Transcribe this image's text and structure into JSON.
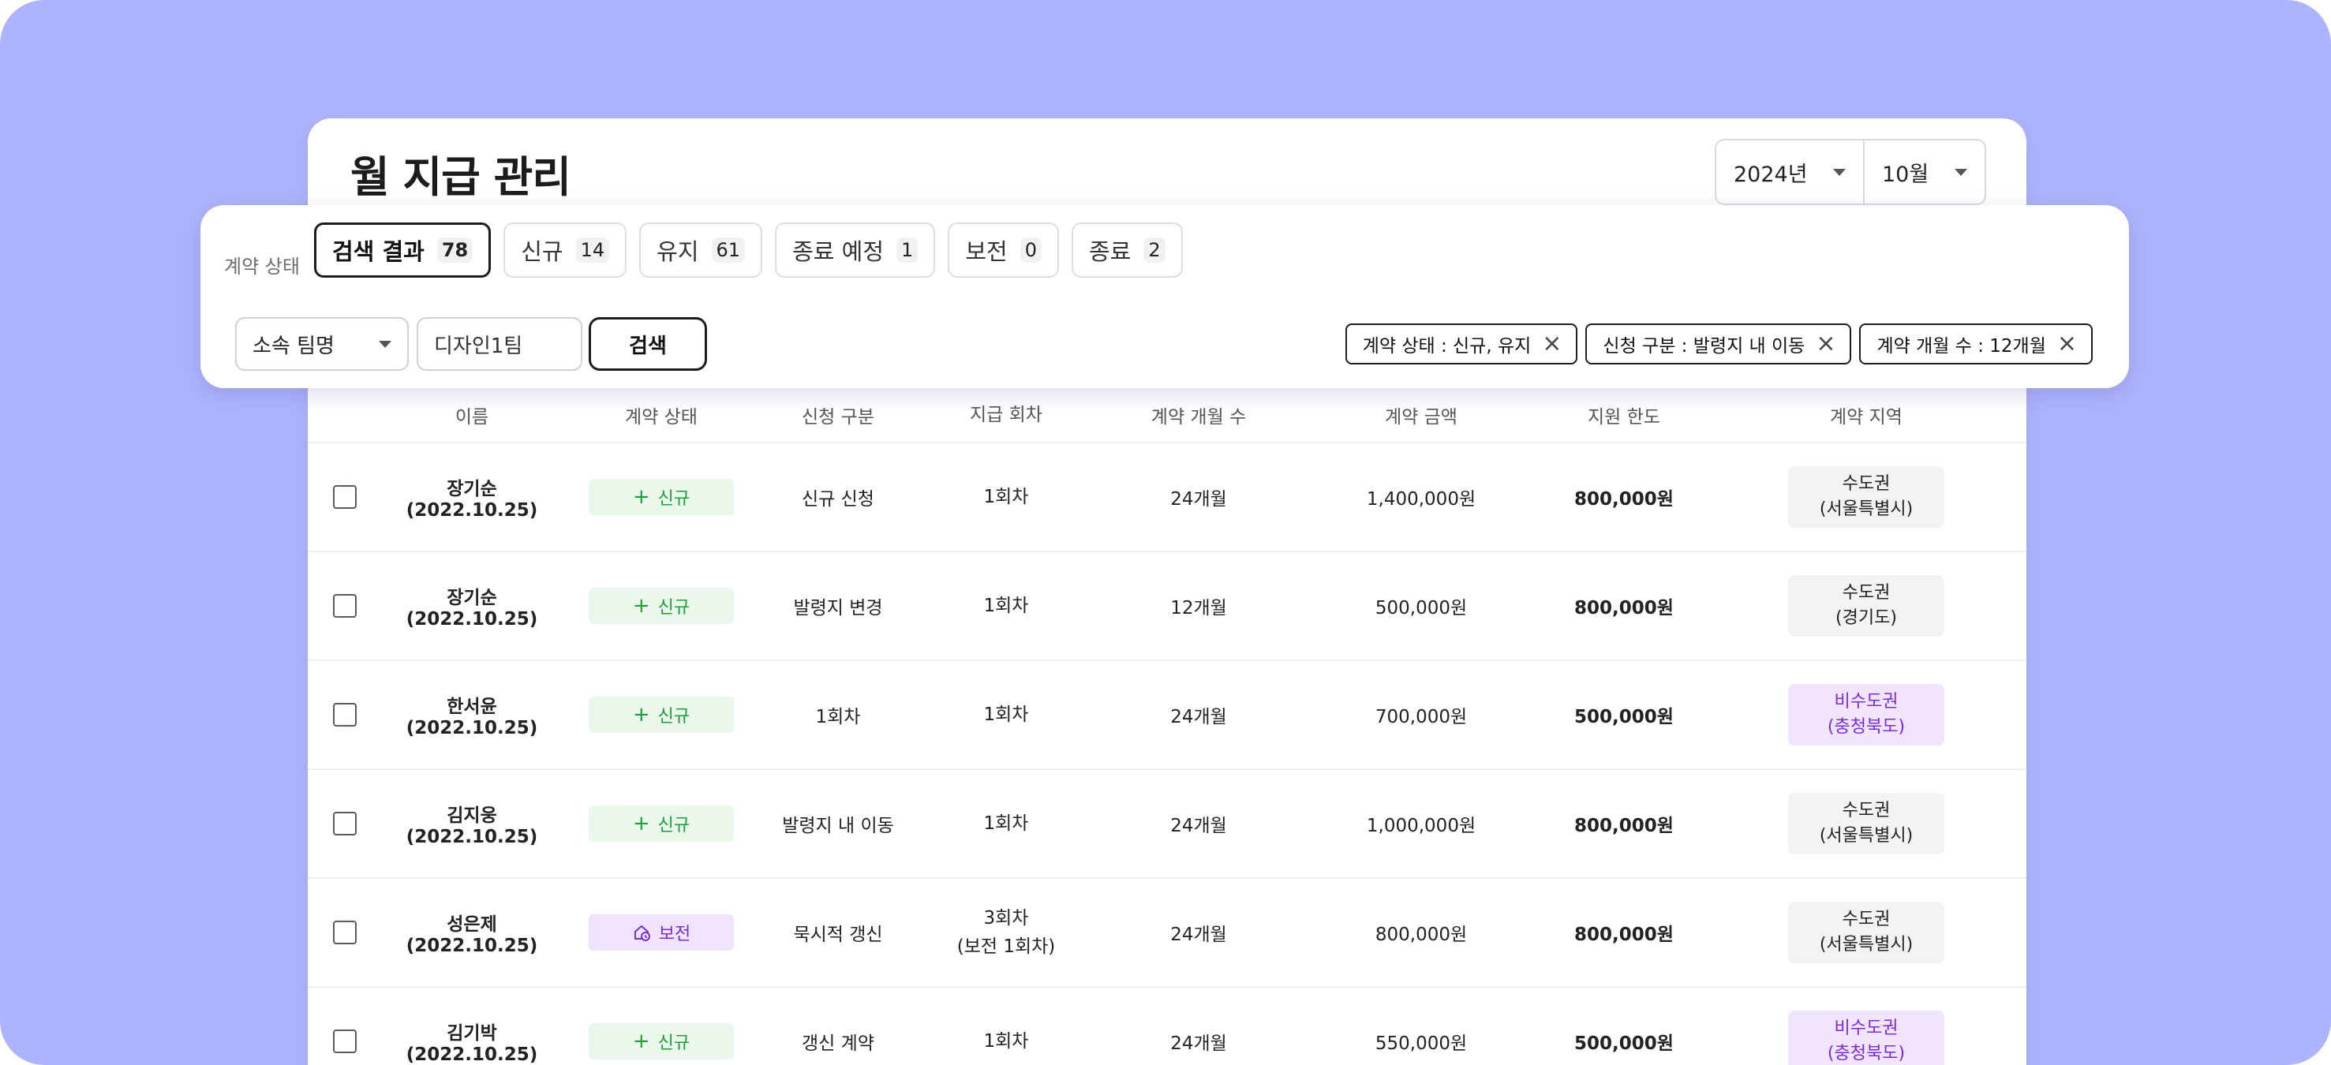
{
  "page": {
    "title": "월 지급 관리",
    "year": "2024년",
    "month": "10월"
  },
  "filter": {
    "status_label": "계약 상태",
    "chips": [
      {
        "label": "검색 결과",
        "count": "78",
        "active": true
      },
      {
        "label": "신규",
        "count": "14",
        "active": false
      },
      {
        "label": "유지",
        "count": "61",
        "active": false
      },
      {
        "label": "종료 예정",
        "count": "1",
        "active": false
      },
      {
        "label": "보전",
        "count": "0",
        "active": false
      },
      {
        "label": "종료",
        "count": "2",
        "active": false
      }
    ],
    "team_select": "소속 팀명",
    "team_value": "디자인1팀",
    "search_button": "검색",
    "tags": [
      "계약 상태 : 신규, 유지",
      "신청 구분 : 발령지 내 이동",
      "계약 개월 수 : 12개월"
    ]
  },
  "table": {
    "columns": [
      "이름",
      "계약 상태",
      "신청 구분",
      "지급 회차",
      "계약 개월 수",
      "계약 금액",
      "지원 한도",
      "계약 지역"
    ],
    "rows": [
      {
        "name": "장기순 (2022.10.25)",
        "status": "신규",
        "apply": "신규 신청",
        "round": "1회차",
        "round_sub": "",
        "months": "24개월",
        "amount": "1,400,000원",
        "limit": "800,000원",
        "region": "수도권",
        "region_sub": "(서울특별시)"
      },
      {
        "name": "장기순 (2022.10.25)",
        "status": "신규",
        "apply": "발령지 변경",
        "round": "1회차",
        "round_sub": "",
        "months": "12개월",
        "amount": "500,000원",
        "limit": "800,000원",
        "region": "수도권",
        "region_sub": "(경기도)"
      },
      {
        "name": "한서윤 (2022.10.25)",
        "status": "신규",
        "apply": "1회차",
        "round": "1회차",
        "round_sub": "",
        "months": "24개월",
        "amount": "700,000원",
        "limit": "500,000원",
        "region": "비수도권",
        "region_sub": "(충청북도)"
      },
      {
        "name": "김지웅 (2022.10.25)",
        "status": "신규",
        "apply": "발령지 내 이동",
        "round": "1회차",
        "round_sub": "",
        "months": "24개월",
        "amount": "1,000,000원",
        "limit": "800,000원",
        "region": "수도권",
        "region_sub": "(서울특별시)"
      },
      {
        "name": "성은제 (2022.10.25)",
        "status": "보전",
        "apply": "묵시적 갱신",
        "round": "3회차",
        "round_sub": "(보전 1회차)",
        "months": "24개월",
        "amount": "800,000원",
        "limit": "800,000원",
        "region": "수도권",
        "region_sub": "(서울특별시)"
      },
      {
        "name": "김기박 (2022.10.25)",
        "status": "신규",
        "apply": "갱신 계약",
        "round": "1회차",
        "round_sub": "",
        "months": "24개월",
        "amount": "550,000원",
        "limit": "500,000원",
        "region": "비수도권",
        "region_sub": "(충청북도)"
      }
    ]
  },
  "icons": {
    "new_badge": "plus-icon",
    "keep_badge": "house-clock-icon",
    "dropdown": "caret-down-icon",
    "tag_remove": "close-icon"
  },
  "colors": {
    "background": "#aeb4fb",
    "new_green": "#1f9d3a",
    "keep_purple": "#7a2fd0"
  }
}
